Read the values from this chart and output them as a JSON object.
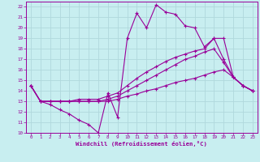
{
  "xlabel": "Windchill (Refroidissement éolien,°C)",
  "background_color": "#c8eef0",
  "grid_color": "#b0d8dc",
  "line_color": "#990099",
  "xlim": [
    -0.5,
    23.5
  ],
  "ylim": [
    10,
    22.5
  ],
  "xticks": [
    0,
    1,
    2,
    3,
    4,
    5,
    6,
    7,
    8,
    9,
    10,
    11,
    12,
    13,
    14,
    15,
    16,
    17,
    18,
    19,
    20,
    21,
    22,
    23
  ],
  "yticks": [
    10,
    11,
    12,
    13,
    14,
    15,
    16,
    17,
    18,
    19,
    20,
    21,
    22
  ],
  "lines": [
    {
      "x": [
        0,
        1,
        2,
        3,
        4,
        5,
        6,
        7,
        8,
        9,
        10,
        11,
        12,
        13,
        14,
        15,
        16,
        17,
        18,
        19,
        20,
        21,
        22,
        23
      ],
      "y": [
        14.5,
        13.0,
        12.7,
        12.2,
        11.8,
        11.2,
        10.8,
        10.0,
        13.8,
        11.5,
        19.0,
        21.4,
        20.0,
        22.2,
        21.5,
        21.3,
        20.2,
        20.0,
        18.2,
        19.0,
        17.0,
        15.3,
        14.5,
        14.0
      ]
    },
    {
      "x": [
        0,
        1,
        2,
        3,
        4,
        5,
        6,
        7,
        8,
        9,
        10,
        11,
        12,
        13,
        14,
        15,
        16,
        17,
        18,
        19,
        20,
        21,
        22,
        23
      ],
      "y": [
        14.5,
        13.0,
        13.0,
        13.0,
        13.0,
        13.2,
        13.2,
        13.2,
        13.5,
        13.8,
        14.5,
        15.2,
        15.8,
        16.3,
        16.8,
        17.2,
        17.5,
        17.8,
        18.0,
        19.0,
        19.0,
        15.3,
        14.5,
        14.0
      ]
    },
    {
      "x": [
        0,
        1,
        2,
        3,
        4,
        5,
        6,
        7,
        8,
        9,
        10,
        11,
        12,
        13,
        14,
        15,
        16,
        17,
        18,
        19,
        20,
        21,
        22,
        23
      ],
      "y": [
        14.5,
        13.0,
        13.0,
        13.0,
        13.0,
        13.0,
        13.0,
        13.0,
        13.2,
        13.5,
        14.0,
        14.5,
        15.0,
        15.5,
        16.0,
        16.5,
        17.0,
        17.3,
        17.7,
        18.0,
        16.7,
        15.3,
        14.5,
        14.0
      ]
    },
    {
      "x": [
        0,
        1,
        2,
        3,
        4,
        5,
        6,
        7,
        8,
        9,
        10,
        11,
        12,
        13,
        14,
        15,
        16,
        17,
        18,
        19,
        20,
        21,
        22,
        23
      ],
      "y": [
        14.5,
        13.0,
        13.0,
        13.0,
        13.0,
        13.0,
        13.0,
        13.0,
        13.0,
        13.2,
        13.5,
        13.7,
        14.0,
        14.2,
        14.5,
        14.8,
        15.0,
        15.2,
        15.5,
        15.8,
        16.0,
        15.3,
        14.5,
        14.0
      ]
    }
  ]
}
